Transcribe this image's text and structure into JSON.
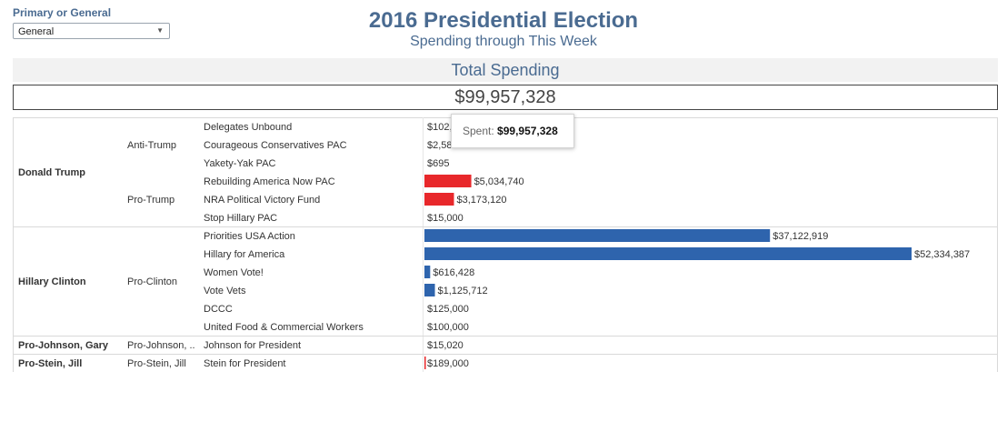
{
  "filter": {
    "label": "Primary or General",
    "selected": "General"
  },
  "header": {
    "title": "2016 Presidential Election",
    "subtitle": "Spending through This Week"
  },
  "total": {
    "label": "Total Spending",
    "value": "$99,957,328"
  },
  "tooltip": {
    "label": "Spent:",
    "value": "$99,957,328"
  },
  "colors": {
    "pro_trump": "#e8282b",
    "pro_clinton": "#2e64ad",
    "pro_stein": "#e8282b",
    "text": "#4a6b91"
  },
  "chart_data": {
    "type": "bar",
    "orientation": "horizontal",
    "groups": [
      {
        "candidate": "Donald Trump",
        "subgroups": [
          {
            "side": "Anti-Trump",
            "items": [
              {
                "name": "Delegates Unbound",
                "value": 102000,
                "label": "$102,"
              },
              {
                "name": "Courageous Conservatives PAC",
                "value": 2580,
                "label": "$2,58"
              },
              {
                "name": "Yakety-Yak PAC",
                "value": 695,
                "label": "$695"
              }
            ]
          },
          {
            "side": "Pro-Trump",
            "items": [
              {
                "name": "Rebuilding America Now PAC",
                "value": 5034740,
                "label": "$5,034,740"
              },
              {
                "name": "NRA Political Victory Fund",
                "value": 3173120,
                "label": "$3,173,120"
              },
              {
                "name": "Stop Hillary PAC",
                "value": 15000,
                "label": "$15,000"
              }
            ]
          }
        ]
      },
      {
        "candidate": "Hillary Clinton",
        "subgroups": [
          {
            "side": "Pro-Clinton",
            "items": [
              {
                "name": "Priorities USA Action",
                "value": 37122919,
                "label": "$37,122,919"
              },
              {
                "name": "Hillary for America",
                "value": 52334387,
                "label": "$52,334,387"
              },
              {
                "name": "Women Vote!",
                "value": 616428,
                "label": "$616,428"
              },
              {
                "name": "Vote Vets",
                "value": 1125712,
                "label": "$1,125,712"
              },
              {
                "name": "DCCC",
                "value": 125000,
                "label": "$125,000"
              },
              {
                "name": "United Food & Commercial Workers",
                "value": 100000,
                "label": "$100,000"
              }
            ]
          }
        ]
      },
      {
        "candidate": "Pro-Johnson, Gary",
        "subgroups": [
          {
            "side": "Pro-Johnson, ..",
            "items": [
              {
                "name": "Johnson for President",
                "value": 15020,
                "label": "$15,020"
              }
            ]
          }
        ]
      },
      {
        "candidate": "Pro-Stein, Jill",
        "subgroups": [
          {
            "side": "Pro-Stein, Jill",
            "items": [
              {
                "name": "Stein for President",
                "value": 189000,
                "label": "$189,000"
              }
            ]
          }
        ]
      }
    ],
    "xlim": [
      0,
      52334387
    ],
    "grid": false,
    "legend": "none"
  }
}
